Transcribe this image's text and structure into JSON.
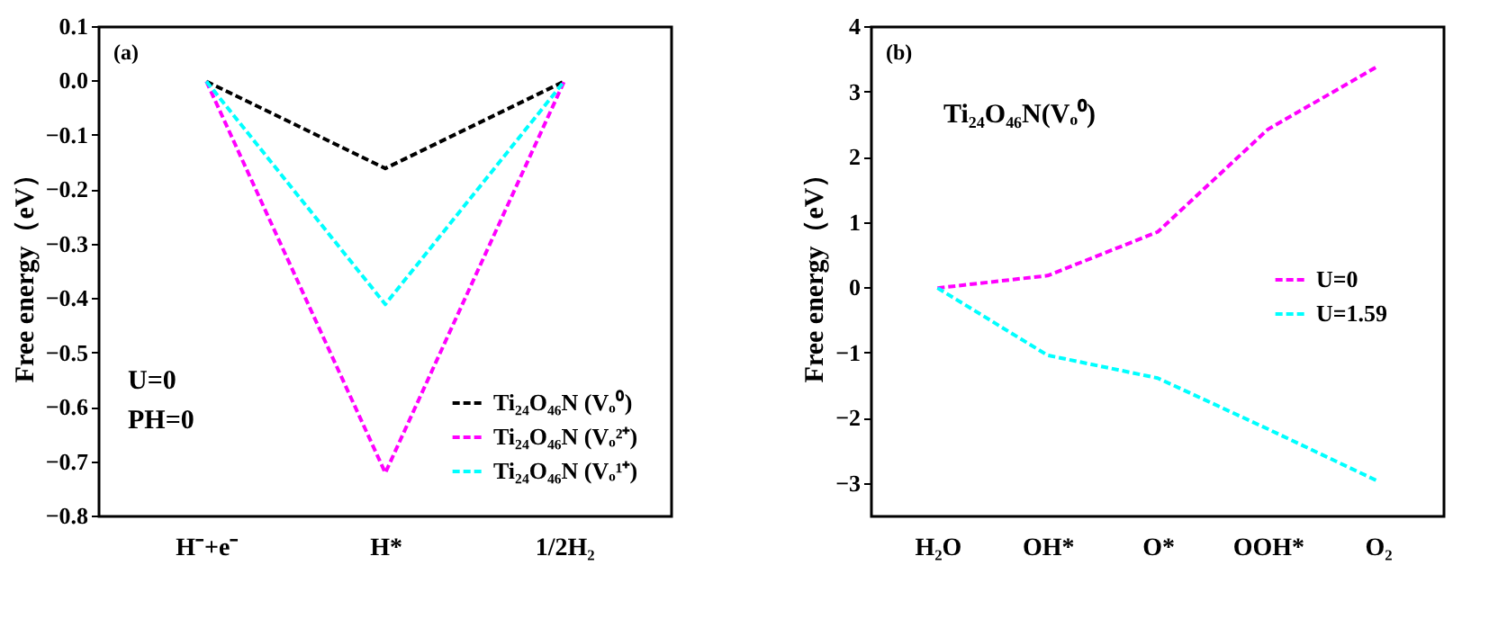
{
  "chart_data": [
    {
      "type": "line",
      "ylabel": "Free energy（eV）",
      "categories": [
        "H⁻+e⁻",
        "H*",
        "1/2H₂"
      ],
      "series": [
        {
          "name": "Ti₂₄O₄₆N (Vₒ⁰)",
          "color": "#000000",
          "values": [
            0,
            -0.16,
            0
          ]
        },
        {
          "name": "Ti₂₄O₄₆N (Vₒ²⁺)",
          "color": "#ff00ff",
          "values": [
            0,
            -0.72,
            0
          ]
        },
        {
          "name": "Ti₂₄O₄₆N (Vₒ¹⁺)",
          "color": "#00ffff",
          "values": [
            0,
            -0.41,
            0
          ]
        }
      ],
      "ylim": [
        -0.8,
        0.1
      ],
      "yticks": [
        -0.8,
        -0.7,
        -0.6,
        -0.5,
        -0.4,
        -0.3,
        -0.2,
        -0.1,
        {
          "value": 0,
          "label": "0.0"
        },
        0.1
      ],
      "annotations": [
        "(a)",
        "U=0",
        "PH=0"
      ],
      "legend": "bottom right",
      "line_style": "dashed",
      "grid": false
    },
    {
      "type": "line",
      "ylabel": "Free energy（eV）",
      "categories": [
        "H₂O",
        "OH*",
        "O*",
        "OOH*",
        "O₂"
      ],
      "series": [
        {
          "name": "U=0",
          "color": "#ff00ff",
          "values": [
            0,
            0.19,
            0.86,
            2.43,
            3.4
          ]
        },
        {
          "name": "U=1.59",
          "color": "#00ffff",
          "values": [
            0,
            -1.03,
            -1.38,
            -2.16,
            -2.96
          ]
        }
      ],
      "ylim": [
        -3.5,
        4
      ],
      "yticks": [
        -3,
        -2,
        -1,
        0,
        1,
        2,
        3,
        4
      ],
      "annotations": [
        "(b)",
        "Ti₂₄O₄₆N(Vₒ⁰)"
      ],
      "legend": "right",
      "line_style": "dashed",
      "grid": false
    }
  ]
}
